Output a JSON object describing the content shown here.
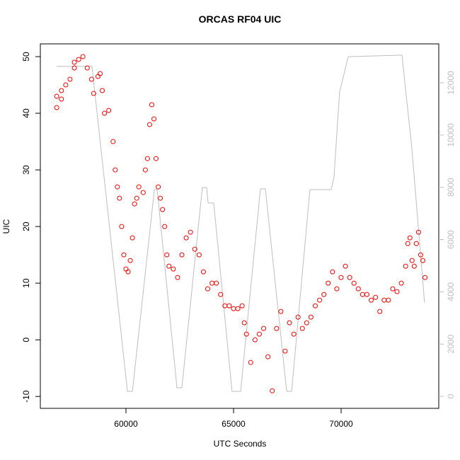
{
  "chart_data": {
    "type": "scatter",
    "title": "ORCAS RF04 UIC",
    "x_label": "UTC Seconds",
    "y_label": "UIC",
    "xlim": [
      56020,
      74540
    ],
    "xticks": [
      60000,
      65000,
      70000
    ],
    "ylim": [
      -12.1,
      52.25
    ],
    "yticks": [
      -10,
      0,
      10,
      20,
      30,
      40,
      50
    ],
    "y2lim": [
      -460,
      13490
    ],
    "y2ticks": [
      0,
      2000,
      4000,
      6000,
      8000,
      10000,
      12000
    ],
    "series": [
      {
        "type": "scatter",
        "color": "#ff0000",
        "x": [
          56780,
          56780,
          57000,
          57000,
          57200,
          57400,
          57600,
          57600,
          57800,
          58000,
          58200,
          58400,
          58500,
          58700,
          58800,
          58900,
          59000,
          59200,
          59400,
          59500,
          59600,
          59700,
          59800,
          59900,
          60000,
          60100,
          60200,
          60300,
          60400,
          60500,
          60600,
          60800,
          60900,
          61000,
          61100,
          61200,
          61300,
          61400,
          61500,
          61600,
          61700,
          61800,
          61900,
          62000,
          62200,
          62400,
          62600,
          62800,
          63000,
          63200,
          63400,
          63600,
          63800,
          64000,
          64200,
          64400,
          64600,
          64800,
          65000,
          65200,
          65400,
          65500,
          65600,
          65800,
          66000,
          66200,
          66400,
          66600,
          66800,
          67000,
          67200,
          67400,
          67600,
          67800,
          68000,
          68200,
          68400,
          68600,
          68800,
          69000,
          69200,
          69400,
          69600,
          69800,
          70000,
          70200,
          70400,
          70600,
          70800,
          71000,
          71200,
          71400,
          71600,
          71800,
          72000,
          72200,
          72400,
          72600,
          72800,
          73000,
          73100,
          73200,
          73300,
          73400,
          73500,
          73600,
          73700,
          73800,
          73900
        ],
        "values": [
          43,
          41,
          42.5,
          44,
          45,
          46,
          48,
          49,
          49.5,
          50,
          48,
          46,
          43.5,
          46.5,
          47,
          44,
          40,
          40.5,
          35,
          30,
          27,
          25,
          20,
          15,
          12.5,
          12,
          14,
          18,
          24,
          25,
          27,
          26,
          30,
          32,
          38,
          41.5,
          39,
          32,
          27,
          25,
          23,
          20,
          15,
          13,
          12.5,
          11,
          15,
          18,
          19,
          16,
          15,
          12,
          9,
          10,
          10,
          8,
          6,
          6,
          5.5,
          5.5,
          6,
          3,
          1,
          -4,
          0,
          1,
          2,
          -3,
          -9,
          2,
          5,
          -2,
          3,
          1,
          4,
          2,
          3,
          4,
          6,
          7,
          8,
          10,
          12,
          9,
          11,
          13,
          11,
          10,
          9,
          8,
          8,
          7,
          7.5,
          5,
          7,
          7,
          9,
          8.5,
          10,
          13,
          17,
          18,
          14,
          13,
          17,
          19,
          15,
          14,
          11
        ]
      },
      {
        "type": "line",
        "axis": "y2",
        "color": "#bebebe",
        "x": [
          56780,
          58420,
          60070,
          60300,
          61320,
          61450,
          62370,
          62600,
          63550,
          63750,
          63820,
          64080,
          64930,
          65330,
          66250,
          66480,
          67470,
          67700,
          68550,
          69540,
          69670,
          69930,
          70330,
          72830,
          73290,
          73880
        ],
        "values": [
          12630,
          12630,
          190,
          190,
          7910,
          7910,
          330,
          330,
          7990,
          7990,
          7400,
          7400,
          190,
          190,
          7940,
          7940,
          190,
          190,
          7910,
          7910,
          8400,
          11650,
          13000,
          13060,
          9480,
          3580
        ]
      }
    ]
  }
}
